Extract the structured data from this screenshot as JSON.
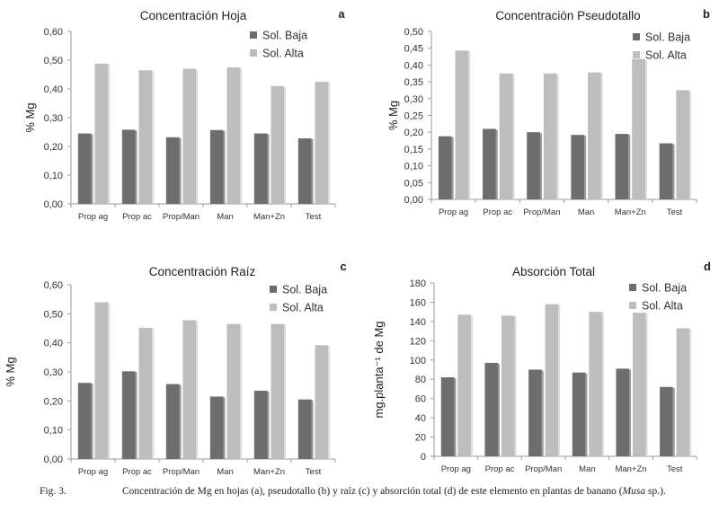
{
  "chart_data": [
    {
      "type": "bar",
      "letter": "a",
      "title": "Concentración Hoja",
      "ylabel": "% Mg",
      "xlabel": "",
      "categories": [
        "Prop ag",
        "Prop ac",
        "Prop/Man",
        "Man",
        "Man+Zn",
        "Test"
      ],
      "series": [
        {
          "name": "Sol. Baja",
          "values": [
            0.245,
            0.258,
            0.232,
            0.257,
            0.245,
            0.228
          ]
        },
        {
          "name": "Sol. Alta",
          "values": [
            0.488,
            0.465,
            0.47,
            0.475,
            0.41,
            0.425
          ]
        }
      ],
      "ylim": [
        0,
        0.6
      ],
      "yticks": [
        "0,00",
        "0,10",
        "0,20",
        "0,30",
        "0,40",
        "0,50",
        "0,60"
      ],
      "legend": "top-right",
      "grid": false
    },
    {
      "type": "bar",
      "letter": "b",
      "title": "Concentración Pseudotallo",
      "ylabel": "% Mg",
      "xlabel": "",
      "categories": [
        "Prop ag",
        "Prop ac",
        "Prop/Man",
        "Man",
        "Man+Zn",
        "Test"
      ],
      "series": [
        {
          "name": "Sol. Baja",
          "values": [
            0.188,
            0.21,
            0.2,
            0.192,
            0.195,
            0.167
          ]
        },
        {
          "name": "Sol. Alta",
          "values": [
            0.443,
            0.375,
            0.375,
            0.378,
            0.418,
            0.325
          ]
        }
      ],
      "ylim": [
        0,
        0.5
      ],
      "yticks": [
        "0,00",
        "0,05",
        "0,10",
        "0,15",
        "0,20",
        "0,25",
        "0,30",
        "0,35",
        "0,40",
        "0,45",
        "0,50"
      ],
      "legend": "top-right",
      "grid": false
    },
    {
      "type": "bar",
      "letter": "c",
      "title": "Concentración Raíz",
      "ylabel": "% Mg",
      "xlabel": "",
      "categories": [
        "Prop ag",
        "Prop ac",
        "Prop/Man",
        "Man",
        "Man+Zn",
        "Test"
      ],
      "series": [
        {
          "name": "Sol. Baja",
          "values": [
            0.262,
            0.302,
            0.258,
            0.215,
            0.235,
            0.205
          ]
        },
        {
          "name": "Sol. Alta",
          "values": [
            0.54,
            0.452,
            0.478,
            0.465,
            0.465,
            0.392
          ]
        }
      ],
      "ylim": [
        0,
        0.6
      ],
      "yticks": [
        "0,00",
        "0,10",
        "0,20",
        "0,30",
        "0,40",
        "0,50",
        "0,60"
      ],
      "legend": "top-right",
      "grid": false
    },
    {
      "type": "bar",
      "letter": "d",
      "title": "Absorción Total",
      "ylabel": "mg.planta⁻¹ de Mg",
      "xlabel": "",
      "categories": [
        "Prop ag",
        "Prop ac",
        "Prop/Man",
        "Man",
        "Man+Zn",
        "Test"
      ],
      "series": [
        {
          "name": "Sol. Baja",
          "values": [
            82,
            97,
            90,
            87,
            91,
            72
          ]
        },
        {
          "name": "Sol. Alta",
          "values": [
            147,
            146,
            158,
            150,
            149,
            133
          ]
        }
      ],
      "ylim": [
        0,
        180
      ],
      "yticks": [
        "0",
        "20",
        "40",
        "60",
        "80",
        "100",
        "120",
        "140",
        "160",
        "180"
      ],
      "legend": "top-right",
      "grid": false
    }
  ],
  "colors": {
    "low": "#6d6d6d",
    "high": "#bdbdbd",
    "axis": "#9a9a9a"
  },
  "caption": {
    "label": "Fig. 3.",
    "text_before": "Concentración de Mg en hojas (a), pseudotallo (b) y raíz (c) y absorción total (d) de este elemento en plantas de banano (",
    "italic": "Musa",
    "text_after": " sp.)."
  }
}
